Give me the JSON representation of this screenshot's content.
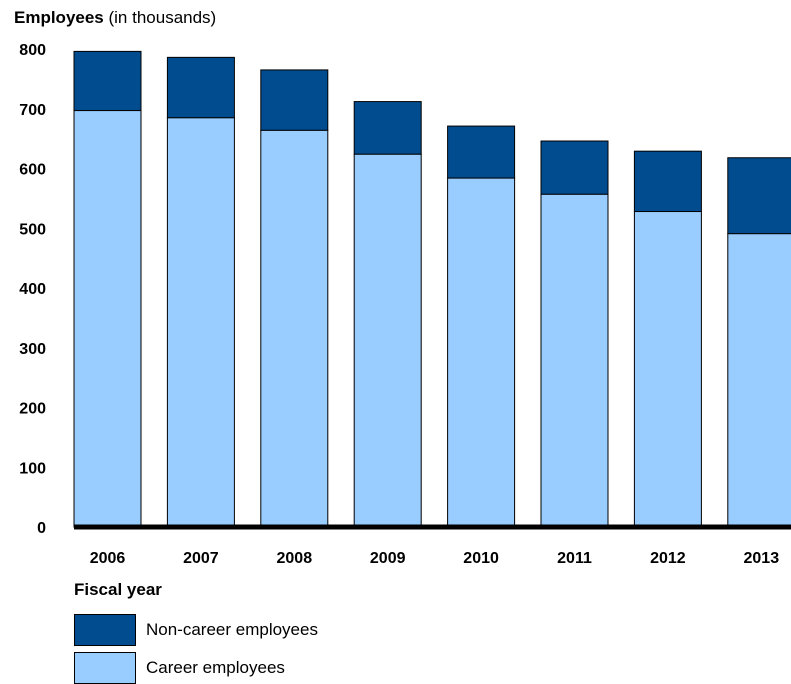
{
  "chart_data": {
    "type": "bar",
    "stacked": true,
    "title": "",
    "ylabel_bold": "Employees",
    "ylabel_rest": " (in thousands)",
    "xlabel": "Fiscal year",
    "categories": [
      "2006",
      "2007",
      "2008",
      "2009",
      "2010",
      "2011",
      "2012",
      "2013"
    ],
    "series": [
      {
        "name": "Career employees",
        "values": [
          697,
          685,
          664,
          624,
          584,
          557,
          528,
          491
        ],
        "color": "#99ccff"
      },
      {
        "name": "Non-career employees",
        "values": [
          99,
          101,
          101,
          88,
          87,
          89,
          101,
          127
        ],
        "color": "#004c8f"
      }
    ],
    "yticks": [
      0,
      100,
      200,
      300,
      400,
      500,
      600,
      700,
      800
    ],
    "ylim": [
      0,
      800
    ],
    "grid": false,
    "legend_position": "bottom-left"
  }
}
